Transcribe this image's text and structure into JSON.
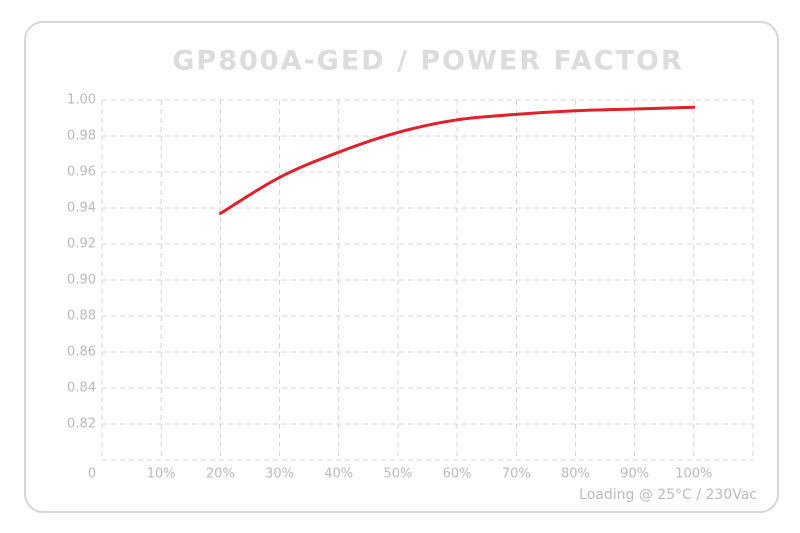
{
  "chart_data": {
    "type": "line",
    "title": "GP800A-GED / POWER FACTOR",
    "annotation": "Loading @ 25°C / 230Vac",
    "x": [
      20,
      30,
      40,
      50,
      60,
      70,
      80,
      90,
      100
    ],
    "series": [
      {
        "name": "Power Factor",
        "color": "#e0202a",
        "values": [
          0.937,
          0.957,
          0.971,
          0.982,
          0.989,
          0.992,
          0.994,
          0.995,
          0.996
        ]
      }
    ],
    "xlim": [
      0,
      110
    ],
    "xticks": [
      0,
      {
        "value": 10,
        "label": "10%"
      },
      {
        "value": 20,
        "label": "20%"
      },
      {
        "value": 30,
        "label": "30%"
      },
      {
        "value": 40,
        "label": "40%"
      },
      {
        "value": 50,
        "label": "50%"
      },
      {
        "value": 60,
        "label": "60%"
      },
      {
        "value": 70,
        "label": "70%"
      },
      {
        "value": 80,
        "label": "80%"
      },
      {
        "value": 90,
        "label": "90%"
      },
      {
        "value": 100,
        "label": "100%"
      }
    ],
    "ylim": [
      0.8,
      1.0
    ],
    "yticks": [
      {
        "value": 0.82,
        "label": "0.82"
      },
      {
        "value": 0.84,
        "label": "0.84"
      },
      {
        "value": 0.86,
        "label": "0.86"
      },
      {
        "value": 0.88,
        "label": "0.88"
      },
      {
        "value": 0.9,
        "label": "0.90"
      },
      {
        "value": 0.92,
        "label": "0.92"
      },
      {
        "value": 0.94,
        "label": "0.94"
      },
      {
        "value": 0.96,
        "label": "0.96"
      },
      {
        "value": 0.98,
        "label": "0.98"
      },
      {
        "value": 1.0,
        "label": "1.00"
      }
    ],
    "grid": true
  }
}
